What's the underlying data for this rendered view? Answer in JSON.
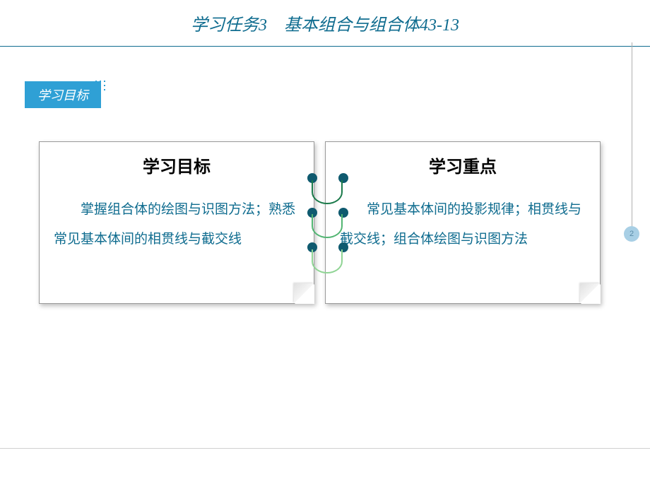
{
  "header": {
    "title": "学习任务3　基本组合与组合体43-13"
  },
  "section": {
    "label": "学习目标"
  },
  "cards": {
    "left": {
      "title": "学习目标",
      "content": "掌握组合体的绘图与识图方法；熟悉常见基本体间的相贯线与截交线"
    },
    "right": {
      "title": "学习重点",
      "content": "常见基本体间的投影规律；相贯线与截交线；组合体绘图与识图方法"
    }
  },
  "page": {
    "number": "2"
  },
  "colors": {
    "primary": "#0f6c8f",
    "label_bg": "#2fa0d5",
    "dot_color": "#0f5a6f",
    "arc_colors": [
      "#1a7a4a",
      "#52b572",
      "#8fd494"
    ],
    "badge_bg": "#a8cfe5",
    "badge_text": "#5a8ca8"
  }
}
